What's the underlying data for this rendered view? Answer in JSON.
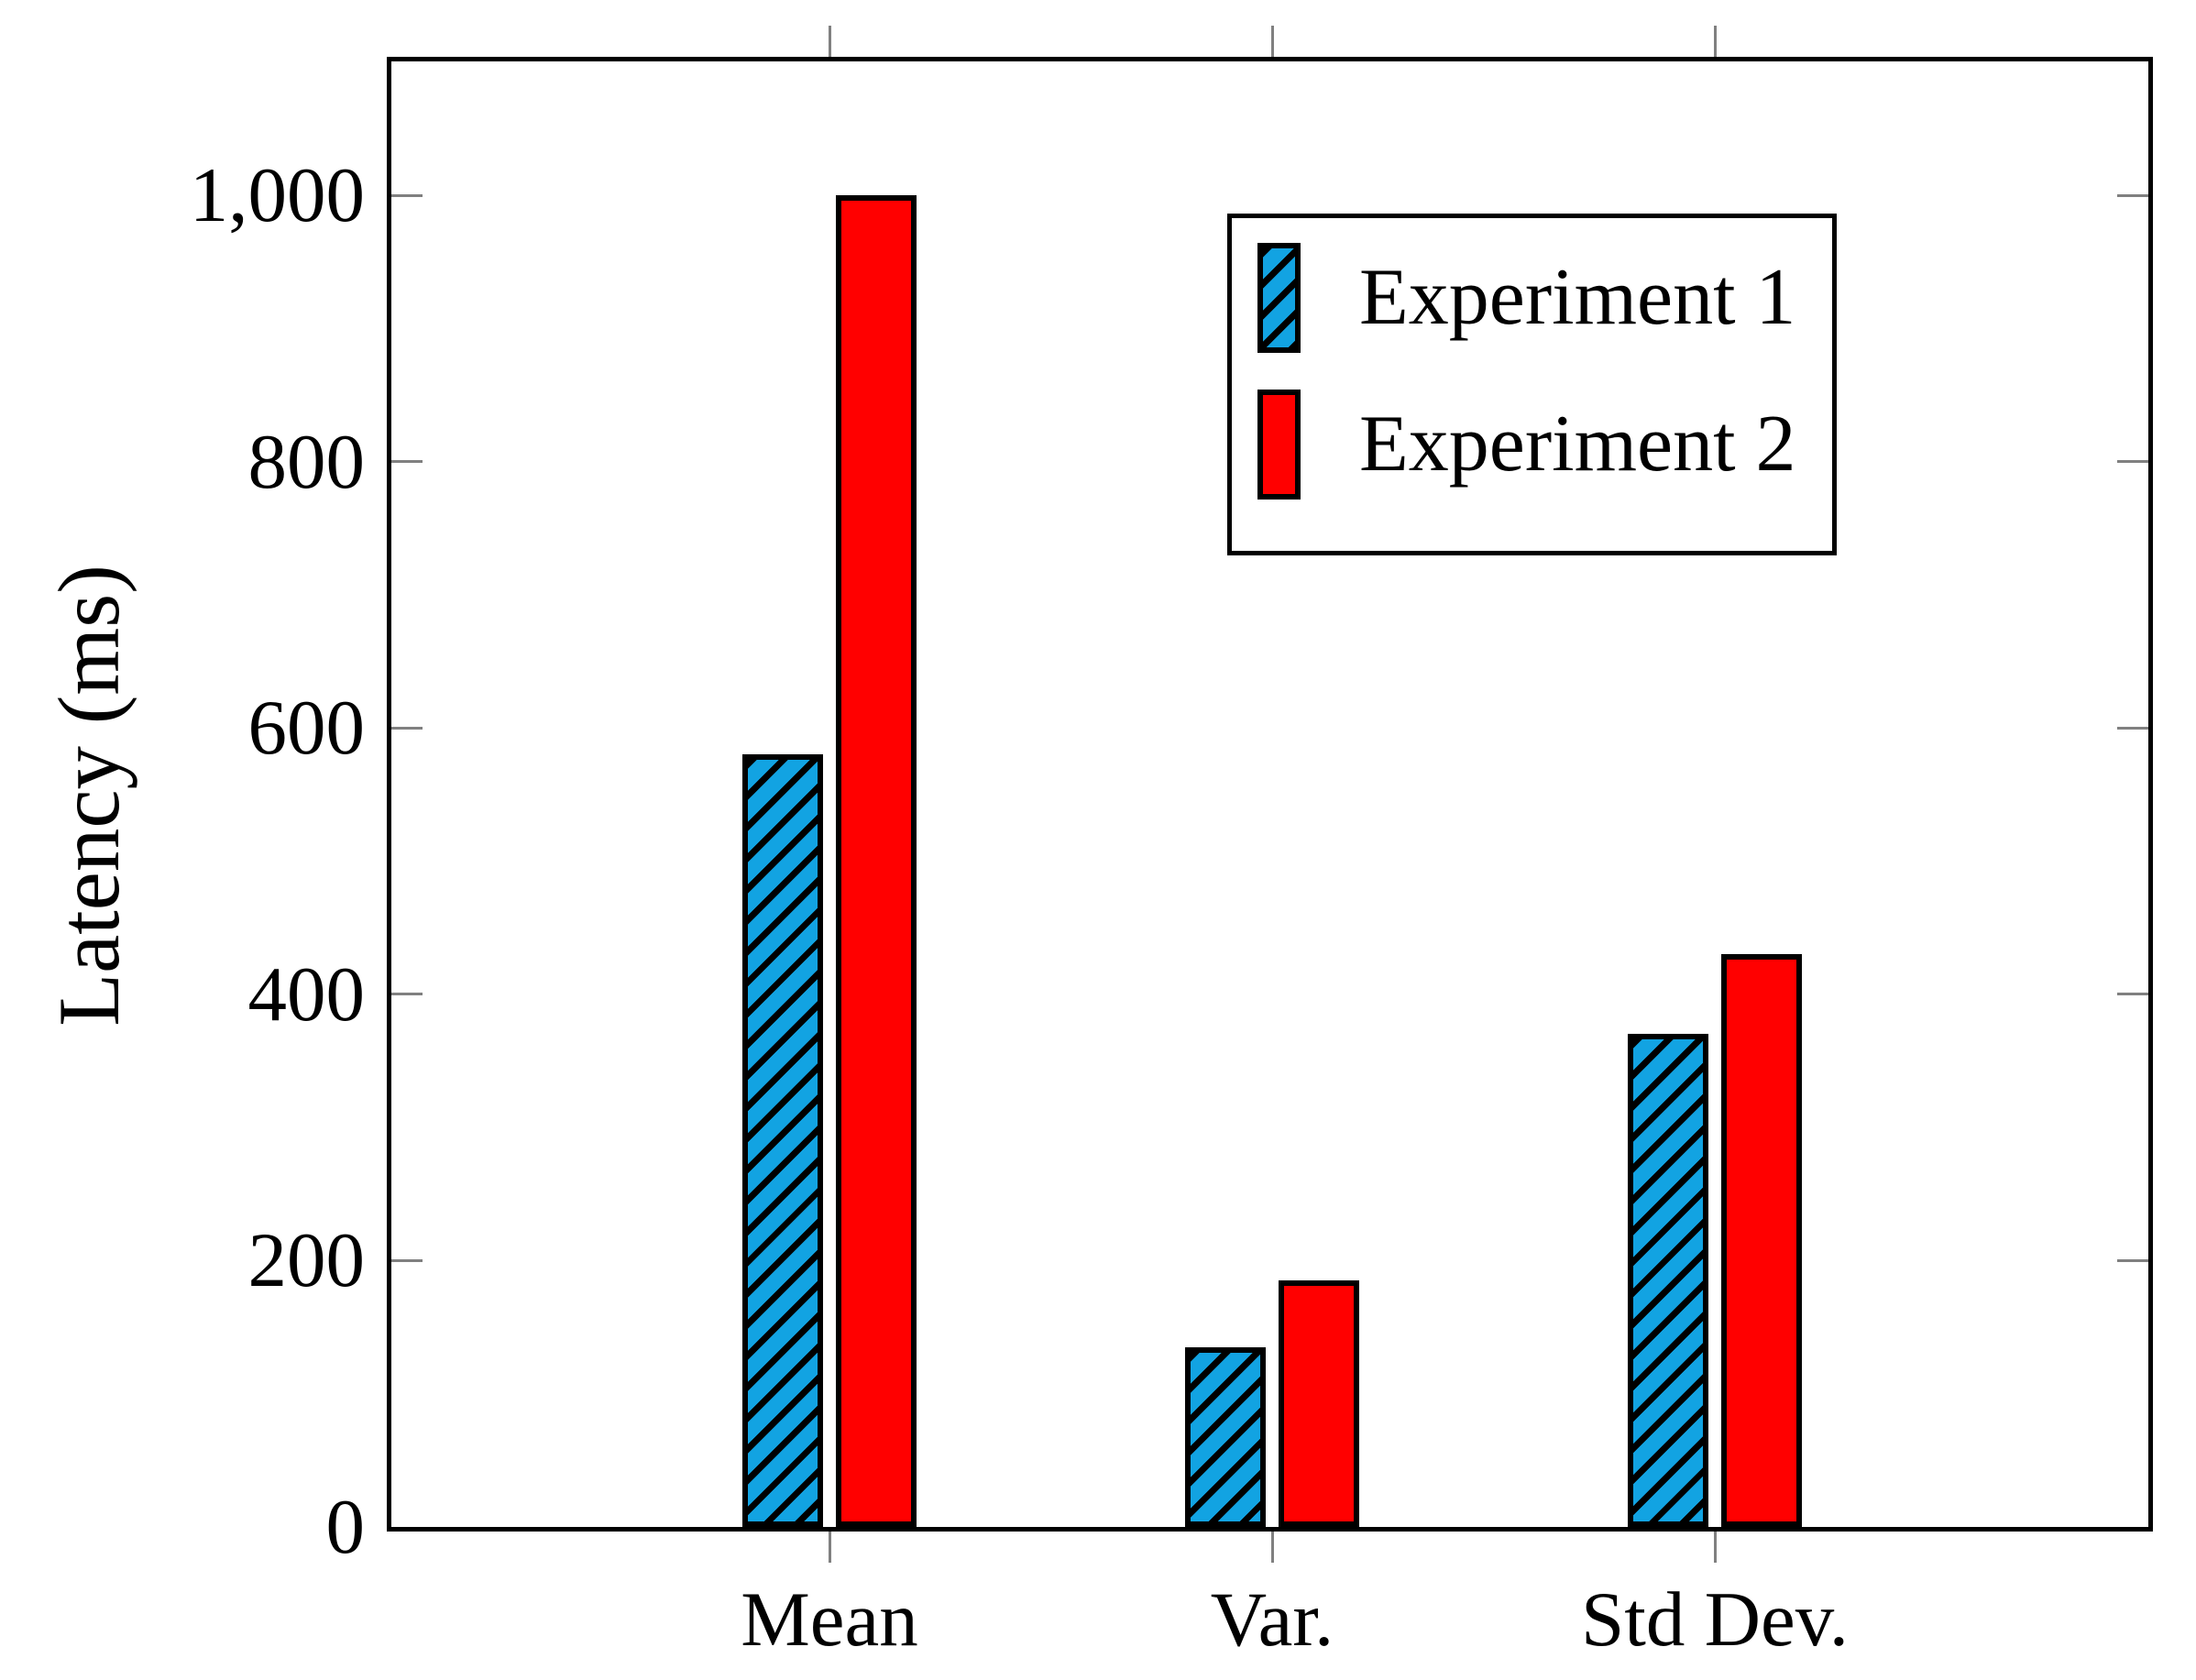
{
  "figure": {
    "background": "#ffffff",
    "axis_frame_color": "#000000",
    "tick_mark_color": "#808080"
  },
  "chart_data": {
    "type": "bar",
    "title": "",
    "categories": [
      "Mean",
      "Var.",
      "Std Dev."
    ],
    "series": [
      {
        "name": "Experiment 1",
        "values": [
          580,
          135,
          370
        ],
        "color": "#12A3E2",
        "pattern": "north-east-hatch",
        "hatch_color": "#000000"
      },
      {
        "name": "Experiment 2",
        "values": [
          1000,
          185,
          430
        ],
        "color": "#FF0000",
        "pattern": "solid"
      }
    ],
    "xlabel": "",
    "ylabel": "Latency (ms)",
    "ylim": [
      0,
      1100
    ],
    "yticks": [
      0,
      200,
      400,
      600,
      800,
      1000
    ],
    "ytick_labels": [
      "0",
      "200",
      "400",
      "600",
      "800",
      "1,000"
    ],
    "grid": false,
    "legend_position": "top-right",
    "bar_border_color": "#000000"
  },
  "legend": {
    "items": [
      {
        "label": "Experiment 1"
      },
      {
        "label": "Experiment 2"
      }
    ]
  }
}
